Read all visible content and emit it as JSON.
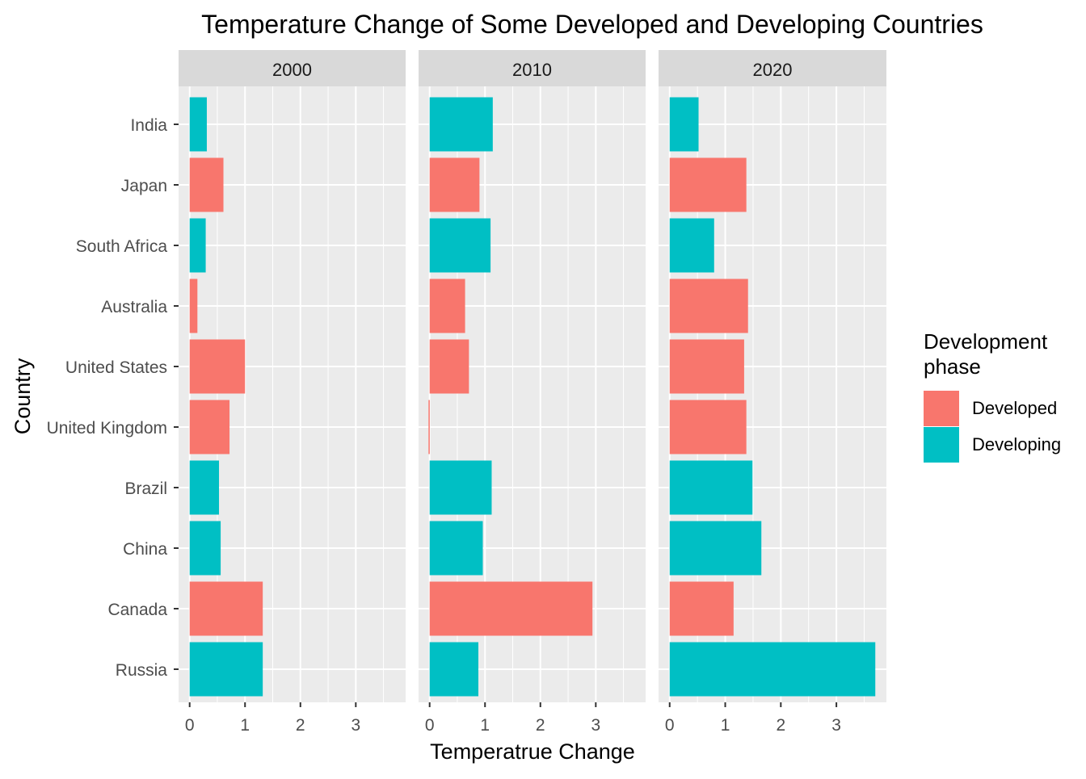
{
  "chart_data": {
    "type": "bar",
    "orientation": "horizontal",
    "title": "Temperature Change of Some Developed and Developing Countries",
    "xlabel": "Temperatrue Change",
    "ylabel": "Country",
    "xlim": [
      -0.2,
      3.9
    ],
    "x_ticks": [
      "0",
      "1",
      "2",
      "3"
    ],
    "grid": true,
    "legend_position": "right",
    "legend": {
      "title_lines": [
        "Development",
        "phase"
      ],
      "entries": [
        {
          "label": "Developed",
          "color": "#F8766D"
        },
        {
          "label": "Developing",
          "color": "#00BFC4"
        }
      ]
    },
    "categories": [
      "India",
      "Japan",
      "South Africa",
      "Australia",
      "United States",
      "United Kingdom",
      "Brazil",
      "China",
      "Canada",
      "Russia"
    ],
    "phase": [
      "Developing",
      "Developed",
      "Developing",
      "Developed",
      "Developed",
      "Developed",
      "Developing",
      "Developing",
      "Developed",
      "Developing"
    ],
    "facets": [
      {
        "label": "2000",
        "values": [
          0.31,
          0.61,
          0.29,
          0.14,
          1.0,
          0.72,
          0.53,
          0.56,
          1.32,
          1.32
        ]
      },
      {
        "label": "2010",
        "values": [
          1.14,
          0.9,
          1.1,
          0.64,
          0.71,
          -0.02,
          1.12,
          0.96,
          2.94,
          0.88
        ]
      },
      {
        "label": "2020",
        "values": [
          0.52,
          1.38,
          0.8,
          1.41,
          1.34,
          1.38,
          1.49,
          1.65,
          1.15,
          3.7
        ]
      }
    ]
  }
}
